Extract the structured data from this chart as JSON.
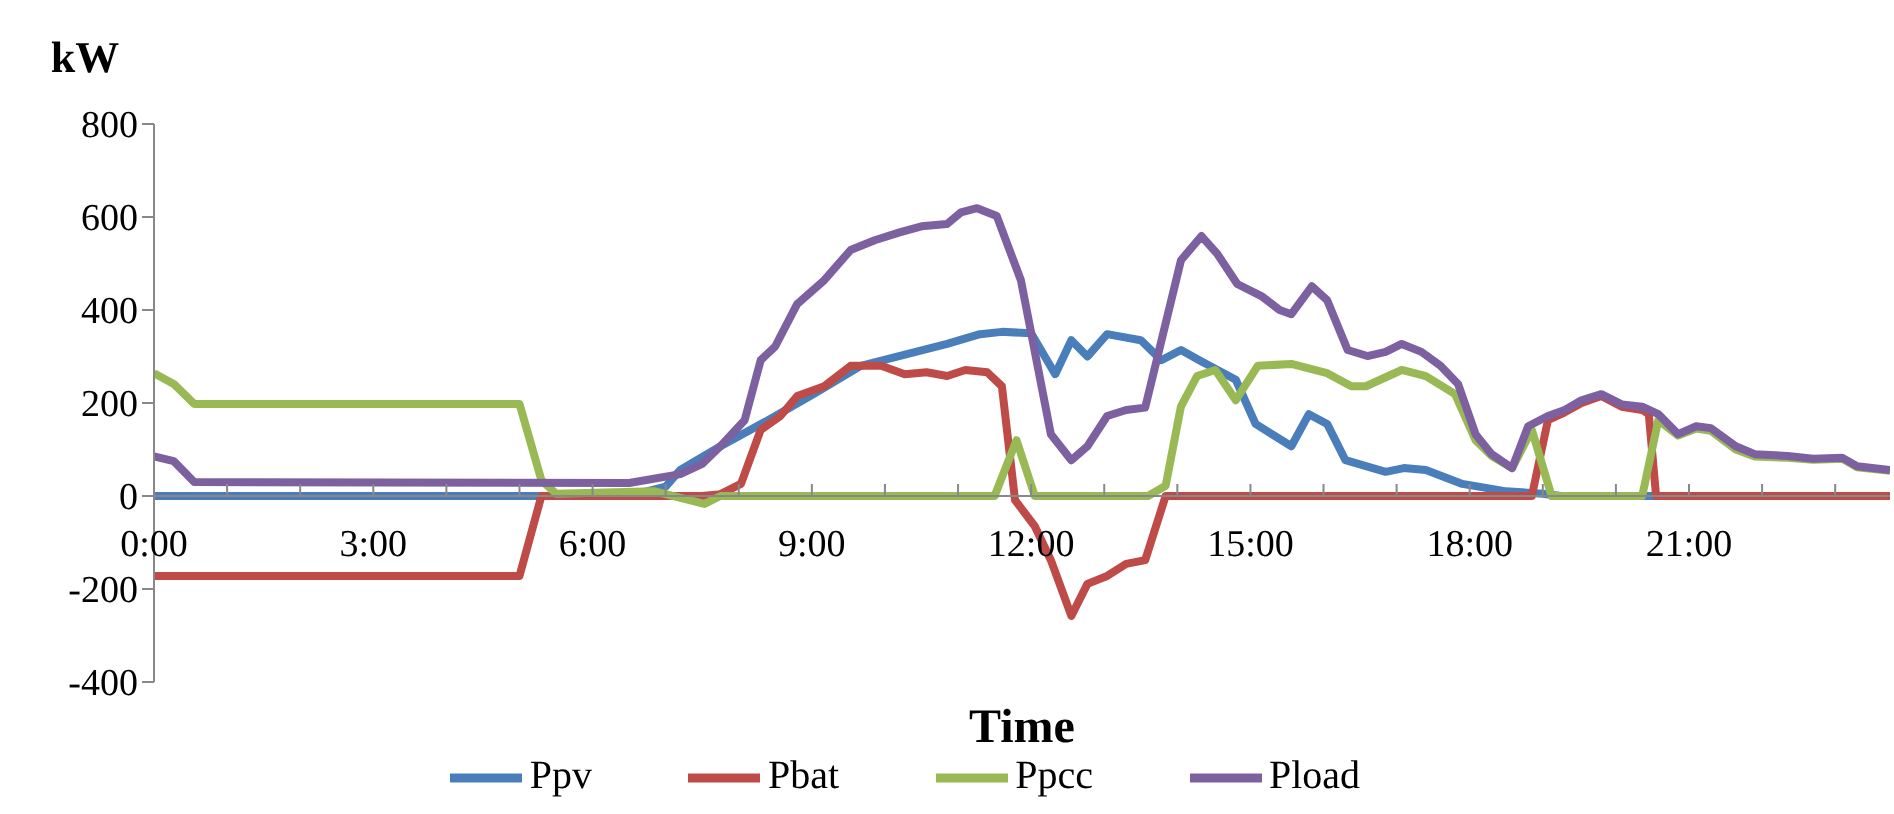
{
  "chart_data": {
    "type": "line",
    "xlabel": "Time",
    "ylabel": "kW",
    "xlim": [
      0,
      23.75
    ],
    "xticks": [
      {
        "value": 0,
        "label": "0:00"
      },
      {
        "value": 1,
        "label": null
      },
      {
        "value": 2,
        "label": null
      },
      {
        "value": 3,
        "label": "3:00"
      },
      {
        "value": 4,
        "label": null
      },
      {
        "value": 5,
        "label": null
      },
      {
        "value": 6,
        "label": "6:00"
      },
      {
        "value": 7,
        "label": null
      },
      {
        "value": 8,
        "label": null
      },
      {
        "value": 9,
        "label": "9:00"
      },
      {
        "value": 10,
        "label": null
      },
      {
        "value": 11,
        "label": null
      },
      {
        "value": 12,
        "label": "12:00"
      },
      {
        "value": 13,
        "label": null
      },
      {
        "value": 14,
        "label": null
      },
      {
        "value": 15,
        "label": "15:00"
      },
      {
        "value": 16,
        "label": null
      },
      {
        "value": 17,
        "label": null
      },
      {
        "value": 18,
        "label": "18:00"
      },
      {
        "value": 19,
        "label": null
      },
      {
        "value": 20,
        "label": null
      },
      {
        "value": 21,
        "label": "21:00"
      },
      {
        "value": 22,
        "label": null
      },
      {
        "value": 23,
        "label": null
      }
    ],
    "ylim": [
      -400,
      800
    ],
    "yticks": [
      -400,
      -200,
      0,
      200,
      400,
      600,
      800
    ],
    "grid": false,
    "legend": "bottom",
    "marker": "none",
    "line_style": "solid",
    "series": [
      {
        "name": "Ppv",
        "color": "#4a7ebb",
        "x": [
          0,
          6.5,
          7,
          7.2,
          7.75,
          8.4,
          9.03,
          9.67,
          10.3,
          10.85,
          11.3,
          11.6,
          12,
          12.33,
          12.55,
          12.77,
          13.04,
          13.5,
          13.78,
          14.05,
          14.3,
          14.8,
          15.07,
          15.56,
          15.8,
          16.05,
          16.3,
          16.85,
          17.1,
          17.4,
          17.9,
          18.5,
          19,
          19.25,
          23.75
        ],
        "values": [
          0,
          0,
          20,
          56,
          107,
          163,
          220,
          280,
          305,
          327,
          348,
          353,
          350,
          262,
          335,
          300,
          348,
          335,
          292,
          314,
          292,
          250,
          155,
          107,
          176,
          155,
          77,
          52,
          60,
          56,
          26,
          10,
          5,
          0,
          0
        ]
      },
      {
        "name": "Pbat",
        "color": "#be4b48",
        "x": [
          0,
          5.0,
          5.3,
          7.5,
          7.75,
          8.03,
          8.3,
          8.57,
          8.8,
          9.17,
          9.53,
          9.95,
          10.27,
          10.57,
          10.85,
          11.1,
          11.4,
          11.6,
          11.78,
          12.05,
          12.27,
          12.55,
          12.77,
          13.04,
          13.3,
          13.56,
          13.84,
          18.85,
          19.07,
          19.3,
          19.53,
          19.8,
          20.08,
          20.36,
          20.45,
          20.55,
          23.75
        ],
        "values": [
          -172,
          -172,
          0,
          0,
          4,
          26,
          142,
          172,
          215,
          236,
          280,
          280,
          262,
          266,
          258,
          271,
          266,
          236,
          -9,
          -65,
          -138,
          -258,
          -189,
          -172,
          -146,
          -138,
          0,
          0,
          163,
          180,
          200,
          215,
          192,
          185,
          176,
          0,
          0
        ]
      },
      {
        "name": "Ppcc",
        "color": "#98b954",
        "x": [
          0,
          0.27,
          0.55,
          5.0,
          5.3,
          5.5,
          6.85,
          7.53,
          7.75,
          11.5,
          11.8,
          12.05,
          13.6,
          13.84,
          14.05,
          14.27,
          14.52,
          14.8,
          15.1,
          15.56,
          16.05,
          16.38,
          16.58,
          17.07,
          17.4,
          17.8,
          18.08,
          18.3,
          18.58,
          18.85,
          19.12,
          20.36,
          20.58,
          20.85,
          21.1,
          21.3,
          21.64,
          21.9,
          22.35,
          22.7,
          23.1,
          23.3,
          23.75
        ],
        "values": [
          264,
          241,
          198,
          198,
          34,
          5,
          10,
          -17,
          0,
          0,
          120,
          0,
          0,
          22,
          193,
          258,
          271,
          206,
          280,
          284,
          264,
          236,
          236,
          271,
          258,
          219,
          120,
          86,
          60,
          142,
          0,
          0,
          163,
          130,
          145,
          140,
          100,
          85,
          82,
          78,
          80,
          62,
          54
        ]
      },
      {
        "name": "Pload",
        "color": "#7d60a0",
        "x": [
          0,
          0.27,
          0.55,
          6.5,
          7.2,
          7.5,
          7.75,
          8.08,
          8.3,
          8.5,
          8.8,
          9.17,
          9.53,
          9.86,
          10.2,
          10.5,
          10.85,
          11.04,
          11.26,
          11.53,
          11.86,
          12.27,
          12.55,
          12.77,
          13.04,
          13.3,
          13.56,
          14.05,
          14.33,
          14.55,
          14.82,
          15.15,
          15.4,
          15.56,
          15.84,
          16.05,
          16.33,
          16.6,
          16.85,
          17.07,
          17.34,
          17.6,
          17.84,
          18.08,
          18.3,
          18.58,
          18.8,
          19.07,
          19.3,
          19.53,
          19.8,
          20.08,
          20.36,
          20.58,
          20.85,
          21.1,
          21.3,
          21.64,
          21.9,
          22.35,
          22.7,
          23.1,
          23.3,
          23.75
        ],
        "values": [
          85,
          75,
          30,
          28,
          47,
          69,
          107,
          163,
          292,
          322,
          413,
          464,
          529,
          550,
          567,
          580,
          585,
          610,
          619,
          602,
          464,
          133,
          77,
          107,
          172,
          185,
          190,
          507,
          559,
          520,
          456,
          430,
          400,
          391,
          451,
          421,
          314,
          301,
          310,
          327,
          310,
          280,
          241,
          133,
          90,
          60,
          150,
          172,
          185,
          206,
          219,
          197,
          192,
          176,
          133,
          150,
          146,
          107,
          90,
          86,
          80,
          82,
          64,
          56
        ]
      }
    ]
  }
}
